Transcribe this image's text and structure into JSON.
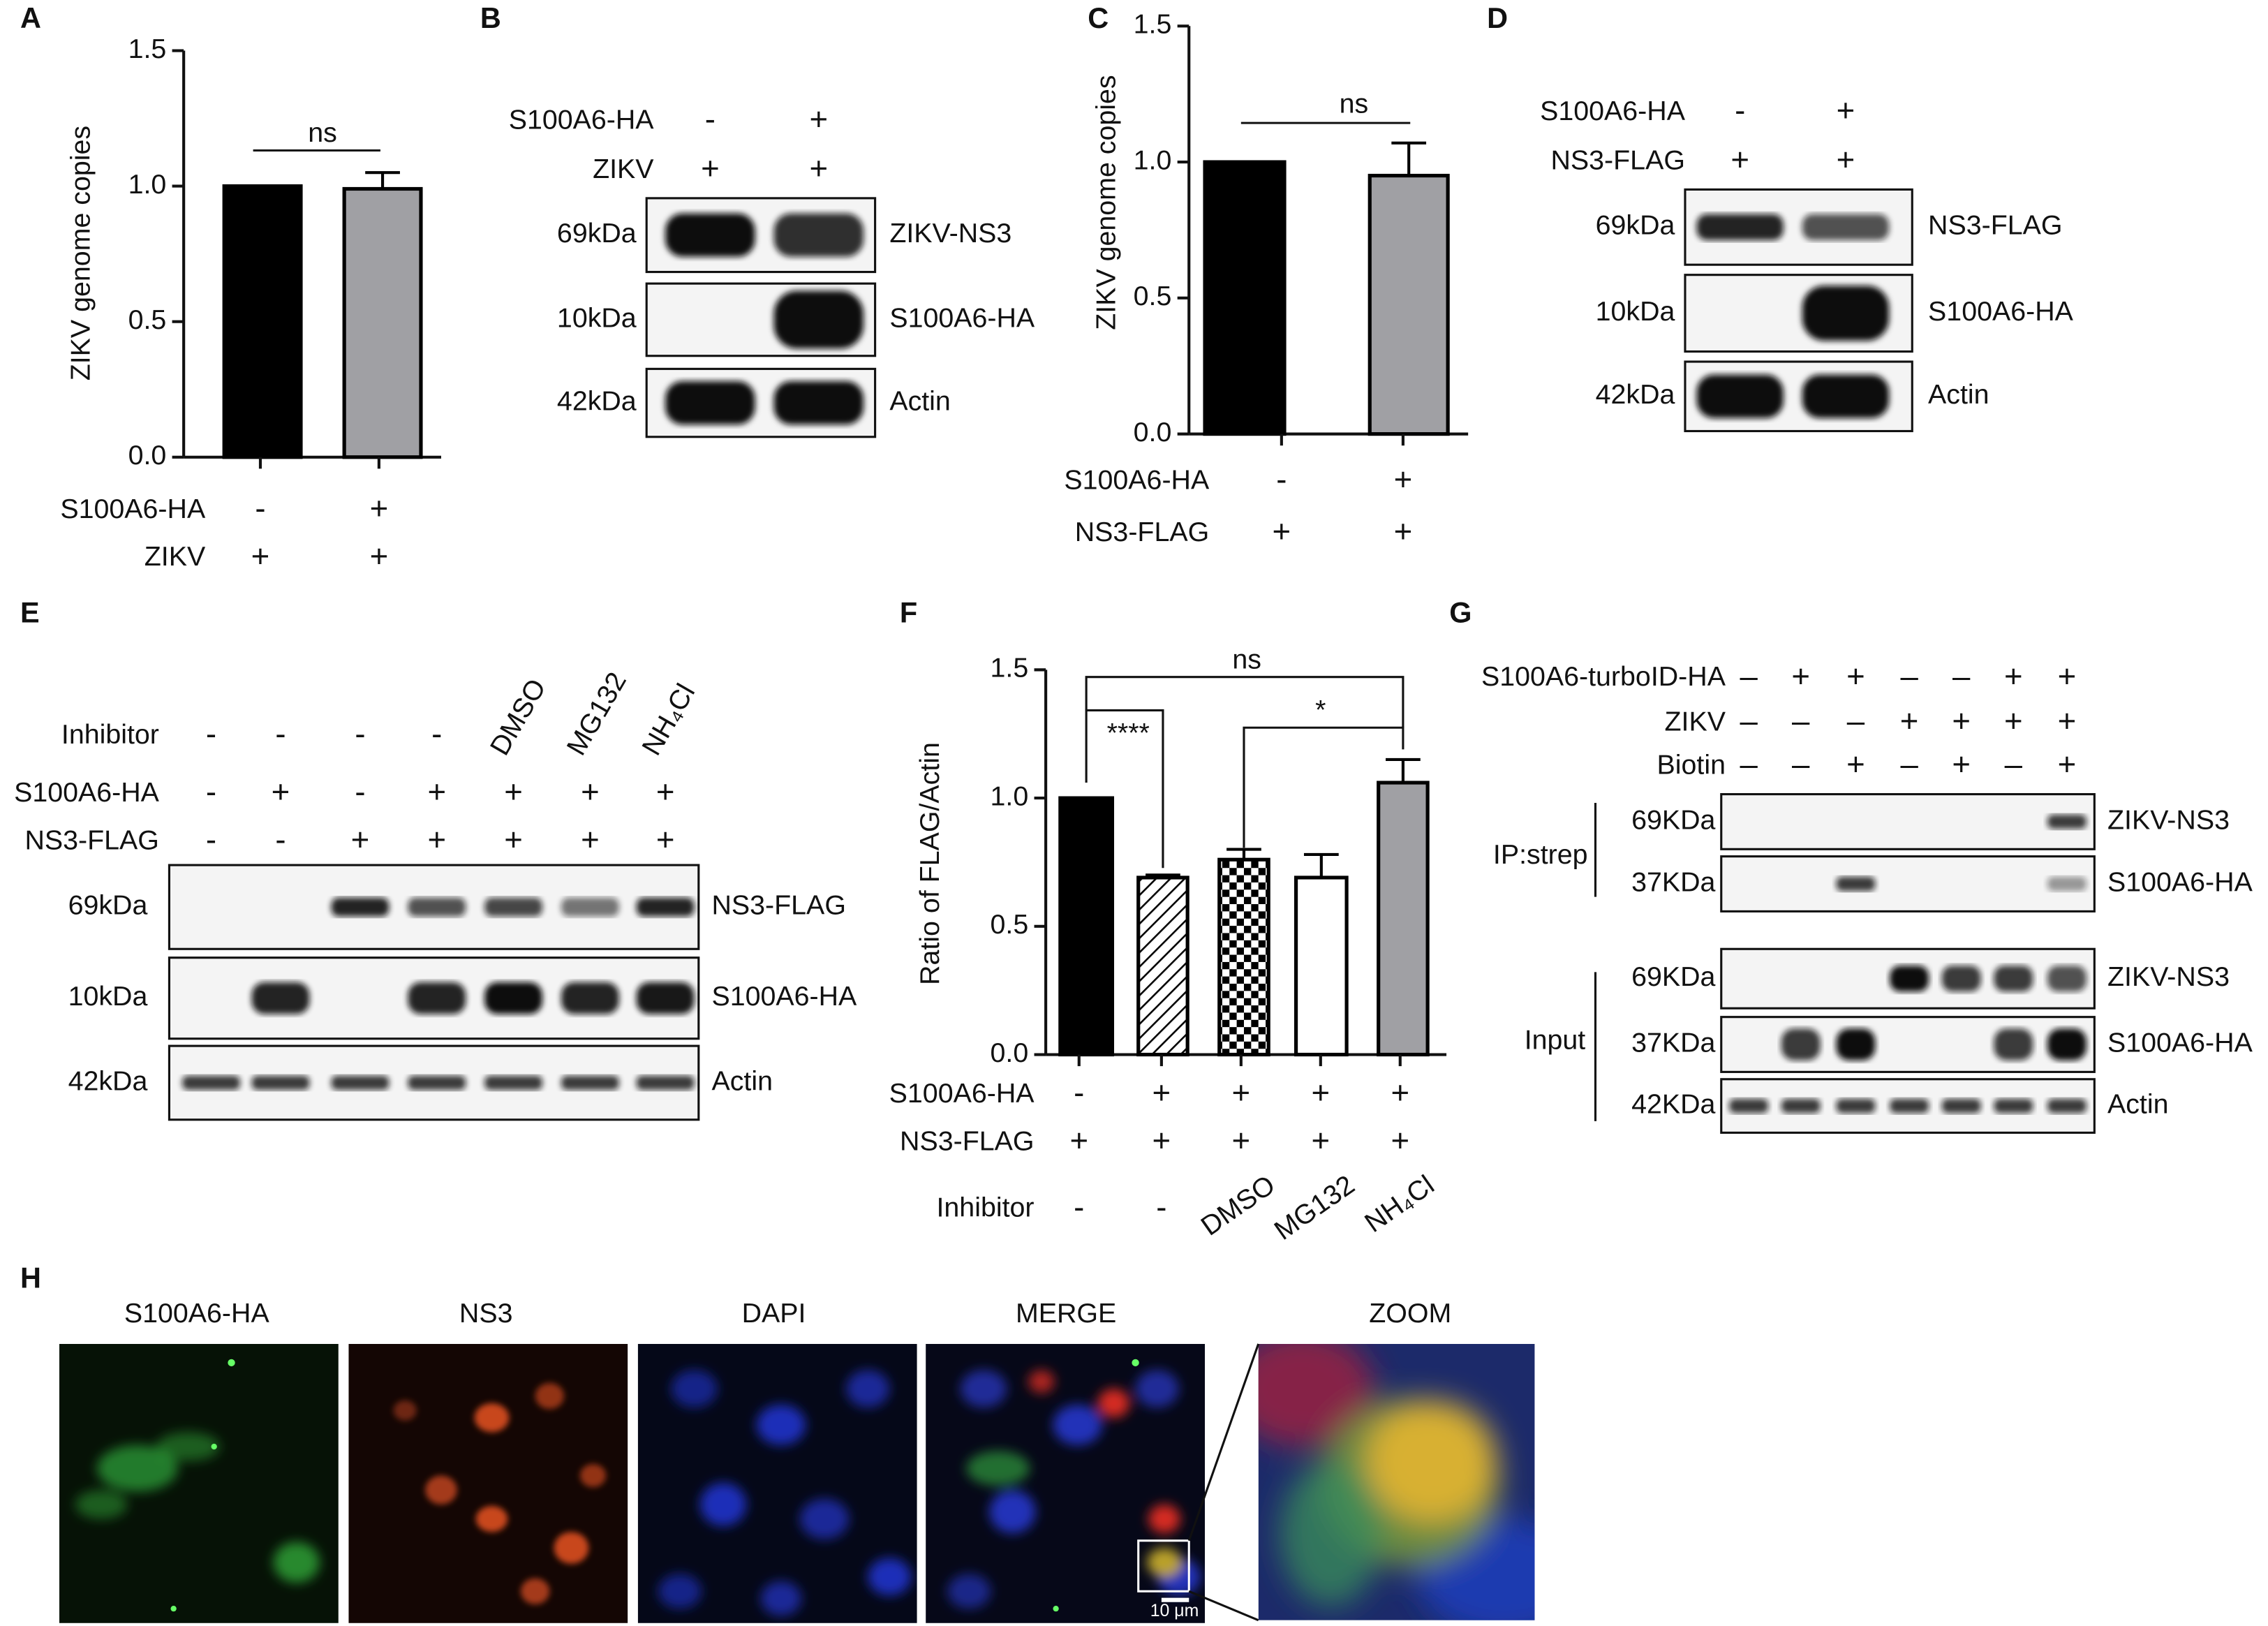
{
  "chart_data": [
    {
      "type": "bar",
      "label": "A",
      "y_label": "ZIKV genome copies",
      "ylim": [
        0,
        1.5
      ],
      "yticks": [
        {
          "value": 0,
          "label": "0.0"
        },
        0.5,
        {
          "value": 1,
          "label": "1.0"
        },
        1.5
      ],
      "values": [
        1.0,
        0.99
      ],
      "errors": [
        0,
        0.06
      ],
      "colors": [
        "#000000",
        "#a0a0a4"
      ],
      "significance": [
        "ns"
      ],
      "conditions": [
        {
          "name": "S100A6-HA",
          "values": [
            "-",
            "+"
          ]
        },
        {
          "name": "ZIKV",
          "values": [
            "+",
            "+"
          ]
        }
      ]
    },
    {
      "type": "bar",
      "label": "C",
      "y_label": "ZIKV genome copies",
      "ylim": [
        0,
        1.5
      ],
      "yticks": [
        {
          "value": 0,
          "label": "0.0"
        },
        0.5,
        {
          "value": 1,
          "label": "1.0"
        },
        1.5
      ],
      "values": [
        1.0,
        0.95
      ],
      "errors": [
        0,
        0.12
      ],
      "colors": [
        "#000000",
        "#a0a0a4"
      ],
      "significance": [
        "ns"
      ],
      "conditions": [
        {
          "name": "S100A6-HA",
          "values": [
            "-",
            "+"
          ]
        },
        {
          "name": "NS3-FLAG",
          "values": [
            "+",
            "+"
          ]
        }
      ]
    },
    {
      "type": "bar",
      "label": "F",
      "y_label": "Ratio of FLAG/Actin",
      "ylim": [
        0,
        1.5
      ],
      "yticks": [
        {
          "value": 0,
          "label": "0.0"
        },
        0.5,
        {
          "value": 1,
          "label": "1.0"
        },
        1.5
      ],
      "values": [
        1.0,
        0.69,
        0.76,
        0.69,
        1.06
      ],
      "errors": [
        0,
        0.01,
        0.04,
        0.09,
        0.09
      ],
      "colors": [
        "#000000",
        "#ffffff",
        "#ffffff",
        "#ffffff",
        "#a0a0a4"
      ],
      "patterns": [
        "solid",
        "hatch",
        "checker",
        "solid",
        "solid"
      ],
      "significance": [
        "****",
        "ns",
        "*"
      ],
      "conditions": [
        {
          "name": "S100A6-HA",
          "values": [
            "-",
            "+",
            "+",
            "+",
            "+"
          ]
        },
        {
          "name": "NS3-FLAG",
          "values": [
            "+",
            "+",
            "+",
            "+",
            "+"
          ]
        },
        {
          "name": "Inhibitor",
          "values": [
            "-",
            "-",
            "DMSO",
            "MG132",
            "NH₄Cl"
          ]
        }
      ]
    }
  ],
  "blots": [
    {
      "label": "B",
      "conditions": [
        {
          "name": "S100A6-HA",
          "values": [
            "-",
            "+"
          ]
        },
        {
          "name": "ZIKV",
          "values": [
            "+",
            "+"
          ]
        }
      ],
      "rows": [
        {
          "marker": "69kDa",
          "name": "ZIKV-NS3"
        },
        {
          "marker": "10kDa",
          "name": "S100A6-HA"
        },
        {
          "marker": "42kDa",
          "name": "Actin"
        }
      ]
    },
    {
      "label": "D",
      "conditions": [
        {
          "name": "S100A6-HA",
          "values": [
            "-",
            "+"
          ]
        },
        {
          "name": "NS3-FLAG",
          "values": [
            "+",
            "+"
          ]
        }
      ],
      "rows": [
        {
          "marker": "69kDa",
          "name": "NS3-FLAG"
        },
        {
          "marker": "10kDa",
          "name": "S100A6-HA"
        },
        {
          "marker": "42kDa",
          "name": "Actin"
        }
      ]
    },
    {
      "label": "E",
      "conditions": [
        {
          "name": "Inhibitor",
          "values": [
            "-",
            "-",
            "-",
            "-",
            "DMSO",
            "MG132",
            "NH₄Cl"
          ]
        },
        {
          "name": "S100A6-HA",
          "values": [
            "-",
            "+",
            "-",
            "+",
            "+",
            "+",
            "+"
          ]
        },
        {
          "name": "NS3-FLAG",
          "values": [
            "-",
            "-",
            "+",
            "+",
            "+",
            "+",
            "+"
          ]
        }
      ],
      "rows": [
        {
          "marker": "69kDa",
          "name": "NS3-FLAG"
        },
        {
          "marker": "10kDa",
          "name": "S100A6-HA"
        },
        {
          "marker": "42kDa",
          "name": "Actin"
        }
      ]
    },
    {
      "label": "G",
      "conditions": [
        {
          "name": "S100A6-turboID-HA",
          "values": [
            "–",
            "+",
            "+",
            "–",
            "–",
            "+",
            "+"
          ]
        },
        {
          "name": "ZIKV",
          "values": [
            "–",
            "–",
            "–",
            "+",
            "+",
            "+",
            "+"
          ]
        },
        {
          "name": "Biotin",
          "values": [
            "–",
            "–",
            "+",
            "–",
            "+",
            "–",
            "+"
          ]
        }
      ],
      "groups": [
        "IP:strep",
        "Input"
      ],
      "rows": [
        {
          "marker": "69KDa",
          "name": "ZIKV-NS3"
        },
        {
          "marker": "37KDa",
          "name": "S100A6-HA"
        },
        {
          "marker": "69KDa",
          "name": "ZIKV-NS3"
        },
        {
          "marker": "37KDa",
          "name": "S100A6-HA"
        },
        {
          "marker": "42KDa",
          "name": "Actin"
        }
      ]
    }
  ],
  "microscopy": {
    "label": "H",
    "titles": [
      "S100A6-HA",
      "NS3",
      "DAPI",
      "MERGE",
      "ZOOM"
    ],
    "scale_bar": "10 μm"
  }
}
